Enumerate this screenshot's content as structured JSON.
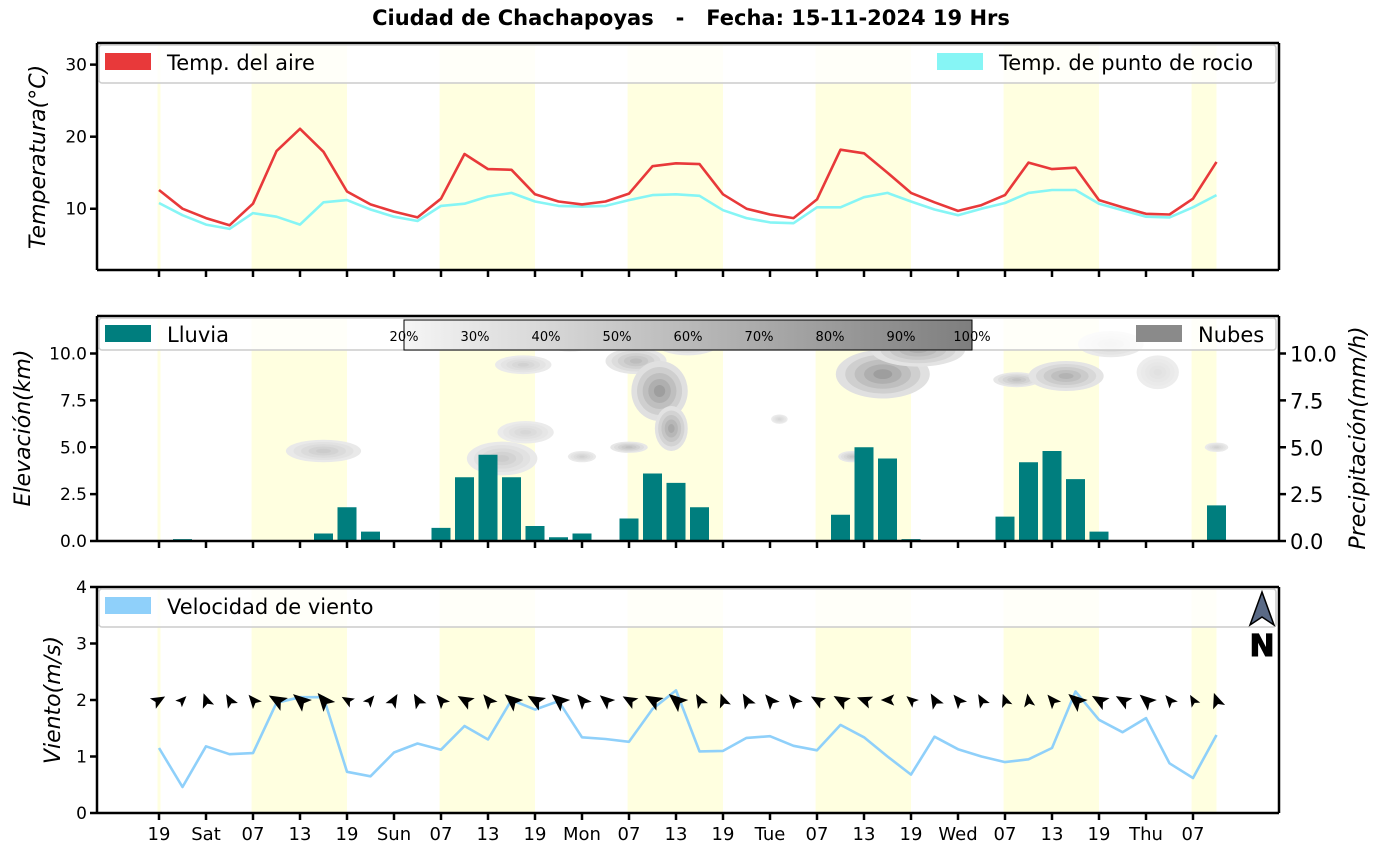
{
  "page_title": "Ciudad de Chachapoyas   -   Fecha: 15-11-2024 19 Hrs",
  "colors": {
    "air_temp": "#e8393a",
    "dew_point": "#86f5f5",
    "rain": "#007e7e",
    "clouds": "#8a8a8a",
    "wind": "#8fd0fa",
    "daytime_band": "#ffffe0"
  },
  "x_ticks": [
    "19",
    "Sat",
    "07",
    "13",
    "19",
    "Sun",
    "07",
    "13",
    "19",
    "Mon",
    "07",
    "13",
    "19",
    "Tue",
    "07",
    "13",
    "19",
    "Wed",
    "07",
    "13",
    "19",
    "Thu",
    "07"
  ],
  "chart_data": [
    {
      "type": "line",
      "ylabel": "Temperatura(°C)",
      "ylim": [
        1.5,
        33
      ],
      "yticks": [
        "10",
        "20",
        "30"
      ],
      "legend": [
        "Temp. del aire",
        "Temp. de punto de rocio"
      ],
      "series": [
        {
          "name": "Temp. del aire",
          "values": [
            12.6,
            10.0,
            8.7,
            7.7,
            10.7,
            18.0,
            21.1,
            17.9,
            12.4,
            10.6,
            9.6,
            8.8,
            11.4,
            17.6,
            15.5,
            15.4,
            12.0,
            11.0,
            10.6,
            11.0,
            12.1,
            15.9,
            16.3,
            16.2,
            12.0,
            10.0,
            9.2,
            8.7,
            11.3,
            18.2,
            17.7,
            15.0,
            12.2,
            10.9,
            9.7,
            10.5,
            11.9,
            16.4,
            15.5,
            15.7,
            11.2,
            10.2,
            9.3,
            9.2,
            11.4,
            16.5
          ]
        },
        {
          "name": "Temp. de punto de rocio",
          "values": [
            10.8,
            9.1,
            7.8,
            7.2,
            9.4,
            8.9,
            7.8,
            10.9,
            11.2,
            9.9,
            8.9,
            8.3,
            10.4,
            10.7,
            11.7,
            12.2,
            11.0,
            10.4,
            10.3,
            10.4,
            11.2,
            11.9,
            12.0,
            11.8,
            9.8,
            8.7,
            8.1,
            8.0,
            10.2,
            10.2,
            11.6,
            12.2,
            11.0,
            9.9,
            9.1,
            10.0,
            10.8,
            12.2,
            12.6,
            12.6,
            10.7,
            9.8,
            8.9,
            8.8,
            10.2,
            11.9
          ]
        }
      ]
    },
    {
      "type": "bar",
      "ylabel": "Elevación(km)",
      "y2label": "Precipitación(mm/h)",
      "ylim": [
        0,
        12
      ],
      "yticks": [
        "0.0",
        "2.5",
        "5.0",
        "7.5",
        "10.0"
      ],
      "y2ticks": [
        "0.0",
        "2.5",
        "5.0",
        "7.5",
        "10.0"
      ],
      "legend": [
        "Lluvia",
        "Nubes"
      ],
      "colorbar_labels": [
        "20%",
        "30%",
        "40%",
        "50%",
        "60%",
        "70%",
        "80%",
        "90%",
        "100%"
      ],
      "series": [
        {
          "name": "Lluvia",
          "values": [
            0,
            0.1,
            0,
            0,
            0,
            0,
            0,
            0.4,
            1.8,
            0.5,
            0.05,
            0,
            0.7,
            3.4,
            4.6,
            3.4,
            0.8,
            0.2,
            0.4,
            0,
            1.2,
            3.6,
            3.1,
            1.8,
            0,
            0,
            0,
            0,
            0,
            1.4,
            5.0,
            4.4,
            0.1,
            0,
            0,
            0,
            1.3,
            4.2,
            4.8,
            3.3,
            0.5,
            0,
            0,
            0,
            0,
            1.9
          ]
        }
      ],
      "clouds": [
        {
          "x": 7.0,
          "y": 4.8,
          "rx": 1.6,
          "ry": 0.6,
          "cover": 0.35
        },
        {
          "x": 14.6,
          "y": 4.4,
          "rx": 1.5,
          "ry": 0.9,
          "cover": 0.35
        },
        {
          "x": 15.6,
          "y": 5.8,
          "rx": 1.2,
          "ry": 0.6,
          "cover": 0.25
        },
        {
          "x": 15.5,
          "y": 9.4,
          "rx": 1.2,
          "ry": 0.5,
          "cover": 0.3
        },
        {
          "x": 17.5,
          "y": 10.7,
          "rx": 1.2,
          "ry": 0.6,
          "cover": 0.35
        },
        {
          "x": 18.0,
          "y": 4.5,
          "rx": 0.6,
          "ry": 0.3,
          "cover": 0.3
        },
        {
          "x": 20.0,
          "y": 5.0,
          "rx": 0.8,
          "ry": 0.3,
          "cover": 0.45
        },
        {
          "x": 20.3,
          "y": 9.6,
          "rx": 1.3,
          "ry": 0.7,
          "cover": 0.5
        },
        {
          "x": 21.3,
          "y": 8.0,
          "rx": 1.2,
          "ry": 1.6,
          "cover": 0.8
        },
        {
          "x": 21.8,
          "y": 6.0,
          "rx": 0.7,
          "ry": 1.2,
          "cover": 0.7
        },
        {
          "x": 22.5,
          "y": 10.6,
          "rx": 1.4,
          "ry": 0.7,
          "cover": 0.45
        },
        {
          "x": 26.4,
          "y": 6.5,
          "rx": 0.35,
          "ry": 0.25,
          "cover": 0.25
        },
        {
          "x": 29.5,
          "y": 4.5,
          "rx": 0.6,
          "ry": 0.3,
          "cover": 0.4
        },
        {
          "x": 30.8,
          "y": 8.9,
          "rx": 2.0,
          "ry": 1.3,
          "cover": 0.8
        },
        {
          "x": 32.3,
          "y": 10.2,
          "rx": 2.0,
          "ry": 0.9,
          "cover": 0.65
        },
        {
          "x": 33.5,
          "y": 10.9,
          "rx": 1.3,
          "ry": 0.6,
          "cover": 0.4
        },
        {
          "x": 36.5,
          "y": 8.6,
          "rx": 1.0,
          "ry": 0.4,
          "cover": 0.45
        },
        {
          "x": 38.6,
          "y": 8.8,
          "rx": 1.6,
          "ry": 0.8,
          "cover": 0.6
        },
        {
          "x": 40.5,
          "y": 10.5,
          "rx": 1.4,
          "ry": 0.7,
          "cover": 0.3
        },
        {
          "x": 42.5,
          "y": 9.0,
          "rx": 0.9,
          "ry": 0.9,
          "cover": 0.15
        },
        {
          "x": 45.0,
          "y": 5.0,
          "rx": 0.5,
          "ry": 0.25,
          "cover": 0.3
        }
      ]
    },
    {
      "type": "line",
      "ylabel": "Viento(m/s)",
      "ylim": [
        0,
        4
      ],
      "yticks": [
        "0",
        "1",
        "2",
        "3",
        "4"
      ],
      "legend": [
        "Velocidad de viento"
      ],
      "north_label": "N",
      "series": [
        {
          "name": "Velocidad de viento",
          "values": [
            1.15,
            0.46,
            1.18,
            1.04,
            1.06,
            1.95,
            2.05,
            2.05,
            0.73,
            0.65,
            1.07,
            1.23,
            1.12,
            1.54,
            1.3,
            2.0,
            1.83,
            1.98,
            1.34,
            1.31,
            1.26,
            1.84,
            2.17,
            1.09,
            1.1,
            1.33,
            1.36,
            1.19,
            1.11,
            1.56,
            1.34,
            1.0,
            0.68,
            1.35,
            1.13,
            1.0,
            0.9,
            0.95,
            1.15,
            2.15,
            1.65,
            1.43,
            1.68,
            0.88,
            0.62,
            1.38
          ]
        },
        {
          "name": "wind_direction_deg",
          "values": [
            60,
            45,
            340,
            330,
            320,
            300,
            310,
            320,
            300,
            40,
            30,
            330,
            320,
            300,
            320,
            310,
            300,
            310,
            320,
            310,
            300,
            300,
            310,
            330,
            340,
            330,
            320,
            320,
            300,
            300,
            290,
            270,
            310,
            330,
            320,
            330,
            340,
            350,
            320,
            310,
            300,
            300,
            310,
            320,
            330,
            340
          ]
        }
      ]
    }
  ]
}
